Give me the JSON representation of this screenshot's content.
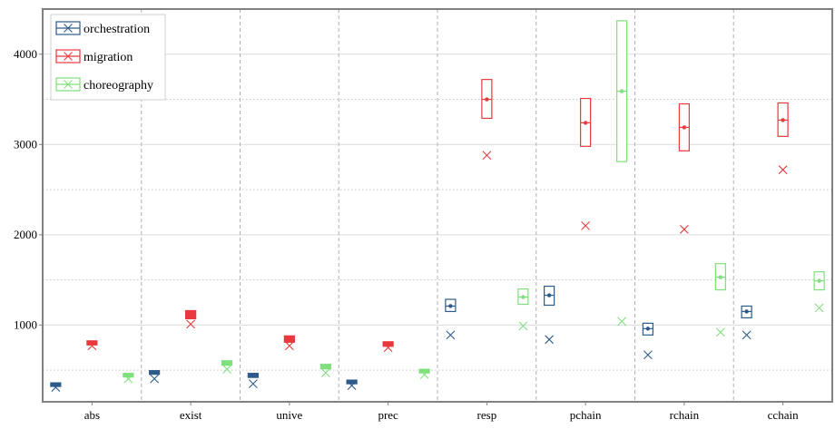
{
  "chart_data": {
    "type": "box",
    "categories": [
      "abs",
      "exist",
      "unive",
      "prec",
      "resp",
      "pchain",
      "rchain",
      "cchain"
    ],
    "yticks": [
      1000,
      2000,
      3000,
      4000
    ],
    "ylim": [
      150,
      4500
    ],
    "grid": {
      "horizontal_major": true,
      "horizontal_minor_dotted": true,
      "vertical_dashed": true
    },
    "legend_position": "top-left",
    "series": [
      {
        "name": "orchestration",
        "color": "#2c5b8a",
        "boxes": [
          {
            "median": 340,
            "q1": 325,
            "q3": 355,
            "marker": 310
          },
          {
            "median": 475,
            "q1": 455,
            "q3": 495,
            "marker": 405
          },
          {
            "median": 440,
            "q1": 420,
            "q3": 465,
            "marker": 350
          },
          {
            "median": 370,
            "q1": 355,
            "q3": 385,
            "marker": 330
          },
          {
            "median": 1210,
            "q1": 1150,
            "q3": 1285,
            "marker": 890
          },
          {
            "median": 1330,
            "q1": 1220,
            "q3": 1430,
            "marker": 840
          },
          {
            "median": 960,
            "q1": 890,
            "q3": 1020,
            "marker": 670
          },
          {
            "median": 1150,
            "q1": 1080,
            "q3": 1210,
            "marker": 890
          }
        ]
      },
      {
        "name": "migration",
        "color": "#e8393c",
        "boxes": [
          {
            "median": 800,
            "q1": 780,
            "q3": 825,
            "marker": 770
          },
          {
            "median": 1110,
            "q1": 1070,
            "q3": 1160,
            "marker": 1010
          },
          {
            "median": 840,
            "q1": 810,
            "q3": 880,
            "marker": 770
          },
          {
            "median": 790,
            "q1": 765,
            "q3": 815,
            "marker": 750
          },
          {
            "median": 3500,
            "q1": 3290,
            "q3": 3720,
            "marker": 2880
          },
          {
            "median": 3240,
            "q1": 2980,
            "q3": 3510,
            "marker": 2100
          },
          {
            "median": 3190,
            "q1": 2930,
            "q3": 3450,
            "marker": 2060
          },
          {
            "median": 3270,
            "q1": 3090,
            "q3": 3460,
            "marker": 2720
          }
        ]
      },
      {
        "name": "choreography",
        "color": "#7fe07c",
        "boxes": [
          {
            "median": 445,
            "q1": 430,
            "q3": 460,
            "marker": 405
          },
          {
            "median": 580,
            "q1": 555,
            "q3": 605,
            "marker": 510
          },
          {
            "median": 540,
            "q1": 515,
            "q3": 565,
            "marker": 470
          },
          {
            "median": 490,
            "q1": 470,
            "q3": 510,
            "marker": 450
          },
          {
            "median": 1310,
            "q1": 1230,
            "q3": 1400,
            "marker": 990
          },
          {
            "median": 3590,
            "q1": 2810,
            "q3": 4370,
            "marker": 1040
          },
          {
            "median": 1530,
            "q1": 1390,
            "q3": 1680,
            "marker": 920
          },
          {
            "median": 1490,
            "q1": 1390,
            "q3": 1590,
            "marker": 1190
          }
        ]
      }
    ]
  }
}
